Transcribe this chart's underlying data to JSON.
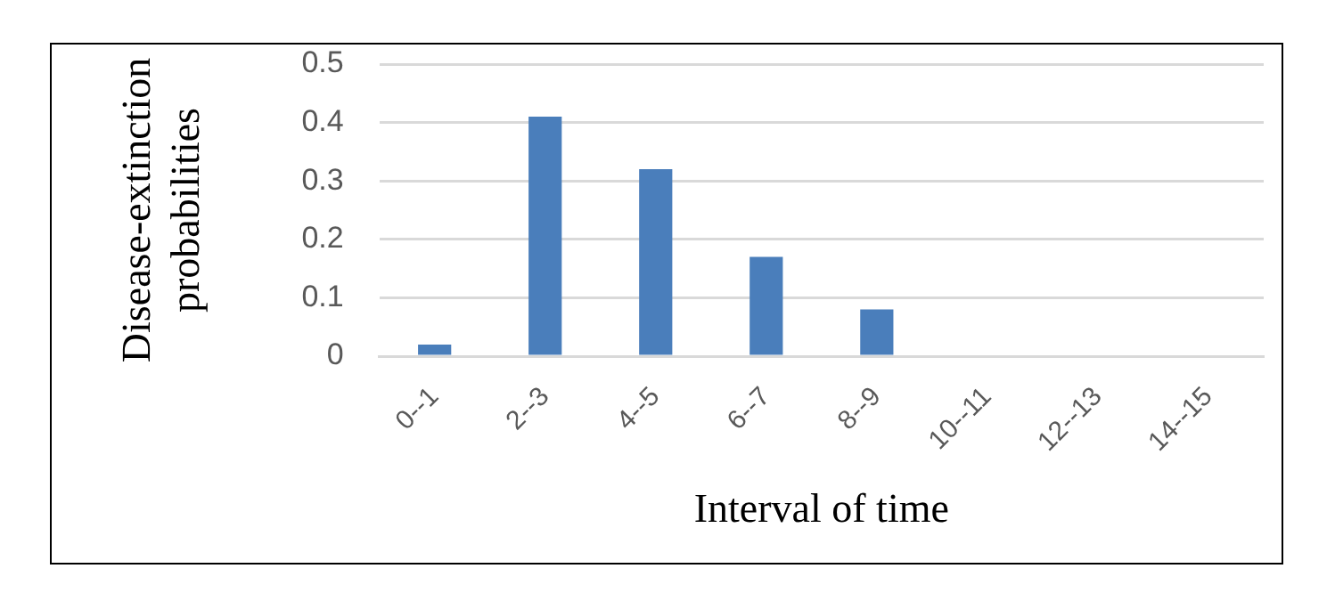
{
  "chart_data": {
    "type": "bar",
    "xlabel": "Interval of time",
    "ylabel": "Disease-extinction probabilities",
    "categories": [
      "0--1",
      "2--3",
      "4--5",
      "6--7",
      "8--9",
      "10--11",
      "12--13",
      "14--15"
    ],
    "values": [
      0.02,
      0.41,
      0.32,
      0.17,
      0.08,
      0,
      0,
      0
    ],
    "color": "#4a7ebb",
    "ylim": [
      0,
      0.5
    ],
    "yticks": [
      0,
      0.1,
      0.2,
      0.3,
      0.4,
      0.5
    ],
    "grid": "y"
  }
}
